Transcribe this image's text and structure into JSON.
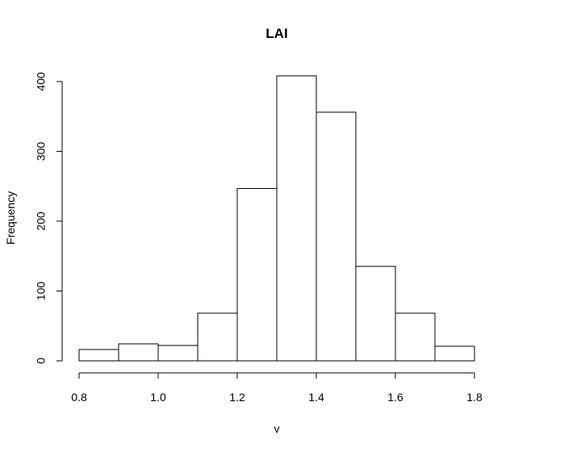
{
  "chart_data": {
    "type": "bar",
    "title": "LAI",
    "xlabel": "v",
    "ylabel": "Frequency",
    "bins": [
      {
        "start": 0.8,
        "end": 0.9,
        "count": 16
      },
      {
        "start": 0.9,
        "end": 1.0,
        "count": 24
      },
      {
        "start": 1.0,
        "end": 1.1,
        "count": 22
      },
      {
        "start": 1.1,
        "end": 1.2,
        "count": 68
      },
      {
        "start": 1.2,
        "end": 1.3,
        "count": 247
      },
      {
        "start": 1.3,
        "end": 1.4,
        "count": 408
      },
      {
        "start": 1.4,
        "end": 1.5,
        "count": 356
      },
      {
        "start": 1.5,
        "end": 1.6,
        "count": 135
      },
      {
        "start": 1.6,
        "end": 1.7,
        "count": 68
      },
      {
        "start": 1.7,
        "end": 1.8,
        "count": 21
      }
    ],
    "xlim": [
      0.8,
      1.8
    ],
    "ylim": [
      0,
      400
    ],
    "xticks": [
      "0.8",
      "1.0",
      "1.2",
      "1.4",
      "1.6",
      "1.8"
    ],
    "yticks": [
      "0",
      "100",
      "200",
      "300",
      "400"
    ],
    "grid": false,
    "legend": false,
    "colors": {
      "bar_fill": "#ffffff",
      "bar_stroke": "#000000"
    }
  }
}
